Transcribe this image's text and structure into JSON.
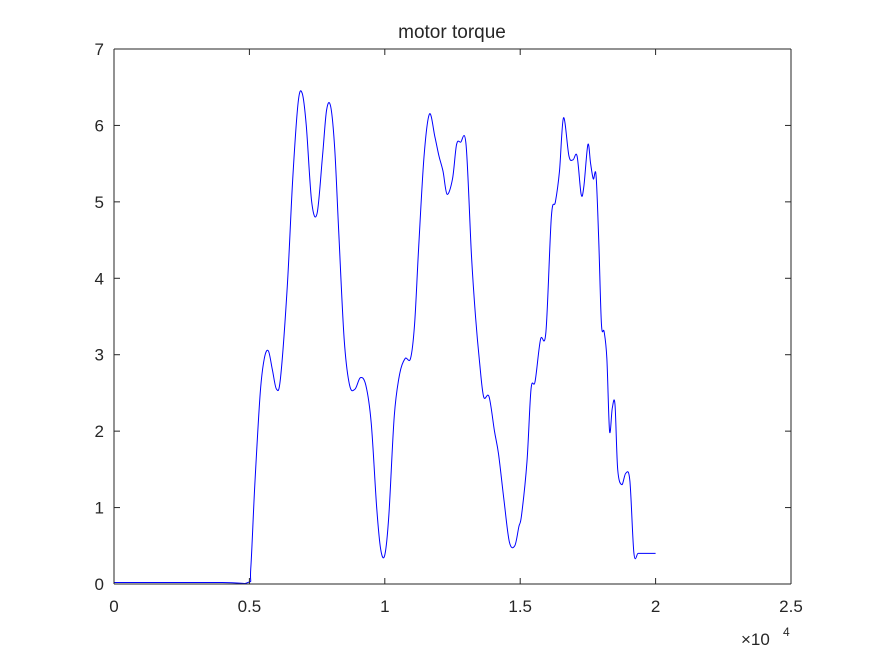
{
  "chart_data": {
    "type": "line",
    "title": "motor torque",
    "xlabel": "",
    "ylabel": "",
    "xlim": [
      0,
      25000
    ],
    "ylim": [
      0,
      7
    ],
    "x_ticks": [
      0,
      5000,
      10000,
      15000,
      20000,
      25000
    ],
    "x_tick_labels": [
      "0",
      "0.5",
      "1",
      "1.5",
      "2",
      "2.5"
    ],
    "x_exponent_label": "×10",
    "x_exponent_power": "4",
    "y_ticks": [
      0,
      1,
      2,
      3,
      4,
      5,
      6,
      7
    ],
    "y_tick_labels": [
      "0",
      "1",
      "2",
      "3",
      "4",
      "5",
      "6",
      "7"
    ],
    "grid": false,
    "legend": "none",
    "colors": {
      "series": "#0000ff",
      "axes": "#262626",
      "background": "#ffffff"
    },
    "series": [
      {
        "color": "#0000ff",
        "x": [
          0,
          4000,
          4950,
          5050,
          5200,
          5400,
          5550,
          5700,
          5850,
          6000,
          6150,
          6400,
          6600,
          6800,
          6950,
          7100,
          7300,
          7500,
          7700,
          7850,
          8000,
          8150,
          8300,
          8500,
          8700,
          8900,
          9100,
          9300,
          9500,
          9700,
          9850,
          10000,
          10150,
          10350,
          10550,
          10750,
          10950,
          11100,
          11250,
          11450,
          11650,
          11850,
          12000,
          12150,
          12300,
          12500,
          12650,
          12800,
          13000,
          13200,
          13350,
          13500,
          13650,
          13850,
          14050,
          14200,
          14400,
          14600,
          14800,
          14950,
          15050,
          15250,
          15400,
          15550,
          15750,
          15950,
          16150,
          16300,
          16450,
          16600,
          16800,
          16950,
          17100,
          17250,
          17350,
          17500,
          17600,
          17700,
          17800,
          17900,
          18000,
          18100,
          18200,
          18300,
          18400,
          18500,
          18600,
          18750,
          18900,
          19050,
          19200,
          19350,
          19500,
          19600,
          19700,
          19800,
          19900,
          20000
        ],
        "y": [
          0.02,
          0.02,
          0.02,
          0.2,
          1.3,
          2.5,
          2.95,
          3.05,
          2.8,
          2.55,
          2.7,
          3.9,
          5.3,
          6.3,
          6.42,
          6.0,
          5.0,
          4.85,
          5.6,
          6.2,
          6.25,
          5.7,
          4.6,
          3.2,
          2.6,
          2.55,
          2.7,
          2.6,
          2.1,
          1.0,
          0.45,
          0.38,
          0.9,
          2.2,
          2.75,
          2.95,
          2.95,
          3.4,
          4.4,
          5.6,
          6.15,
          5.85,
          5.6,
          5.4,
          5.1,
          5.3,
          5.75,
          5.78,
          5.75,
          4.3,
          3.5,
          2.9,
          2.45,
          2.45,
          2.0,
          1.7,
          1.1,
          0.55,
          0.5,
          0.75,
          0.9,
          1.6,
          2.55,
          2.65,
          3.2,
          3.3,
          4.8,
          5.0,
          5.4,
          6.1,
          5.6,
          5.55,
          5.6,
          5.1,
          5.2,
          5.75,
          5.5,
          5.3,
          5.35,
          4.5,
          3.4,
          3.3,
          2.95,
          2.0,
          2.3,
          2.35,
          1.5,
          1.3,
          1.45,
          1.35,
          0.4,
          0.4,
          0.4,
          0.4,
          0.4,
          0.4,
          0.4,
          0.4
        ]
      }
    ]
  }
}
